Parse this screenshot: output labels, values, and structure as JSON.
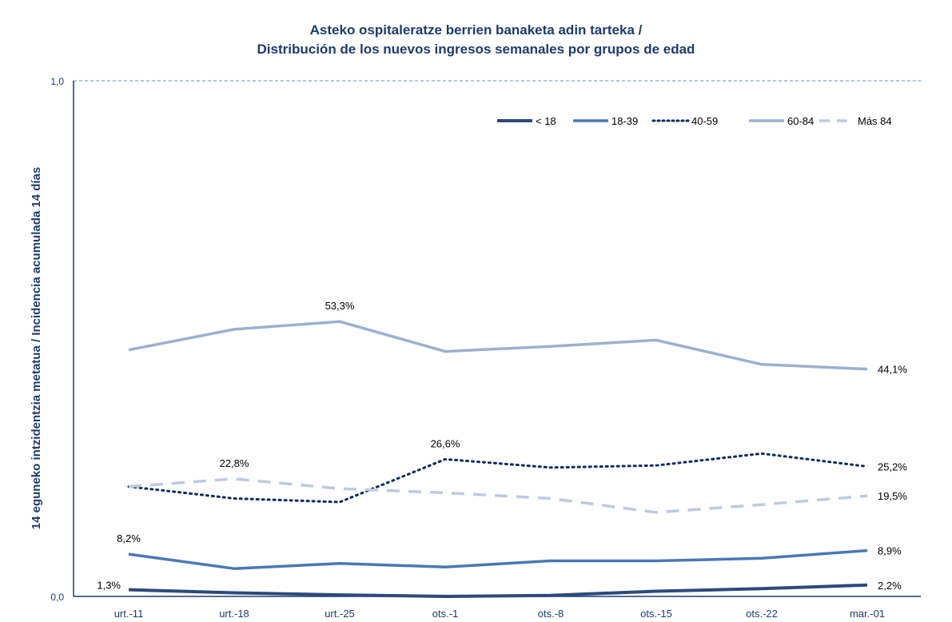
{
  "chart_data": {
    "type": "line",
    "title": "Asteko ospitaleratze berrien banaketa adin tarteka /",
    "subtitle": "Distribución de los nuevos ingresos semanales por grupos de edad",
    "ylabel": "14 eguneko intzidentzia metatua / Incidencia acumulada 14 días",
    "xlabel": "",
    "ylim": [
      0,
      1
    ],
    "y_ticks": [
      "0,0",
      "1,0"
    ],
    "legend_position": "top-right",
    "categories": [
      "urt.-11",
      "urt.-18",
      "urt.-25",
      "ots.-1",
      "ots.-8",
      "ots.-15",
      "ots.-22",
      "mar.-01"
    ],
    "series": [
      {
        "name": "< 18",
        "values": [
          0.013,
          0.007,
          0.003,
          0.0,
          0.002,
          0.01,
          0.015,
          0.022
        ],
        "color": "#2b4a7c",
        "dash": "solid",
        "width": 4,
        "labels": [
          {
            "index": 0,
            "text": "1,3%"
          },
          {
            "index": 7,
            "text": "2,2%"
          }
        ]
      },
      {
        "name": "18-39",
        "values": [
          0.082,
          0.054,
          0.064,
          0.057,
          0.069,
          0.069,
          0.074,
          0.089
        ],
        "color": "#4a78b4",
        "dash": "solid",
        "width": 3.5,
        "labels": [
          {
            "index": 0,
            "text": "8,2%"
          },
          {
            "index": 7,
            "text": "8,9%"
          }
        ]
      },
      {
        "name": "40-59",
        "values": [
          0.213,
          0.19,
          0.183,
          0.266,
          0.25,
          0.254,
          0.277,
          0.252
        ],
        "color": "#0d2a5e",
        "dash": "dotted",
        "width": 3,
        "labels": [
          {
            "index": 3,
            "text": "26,6%"
          },
          {
            "index": 7,
            "text": "25,2%"
          }
        ]
      },
      {
        "name": "60-84",
        "values": [
          0.478,
          0.518,
          0.533,
          0.475,
          0.485,
          0.497,
          0.45,
          0.441
        ],
        "color": "#9cb0d0",
        "dash": "solid",
        "width": 3.5,
        "labels": [
          {
            "index": 2,
            "text": "53,3%"
          },
          {
            "index": 7,
            "text": "44,1%"
          }
        ]
      },
      {
        "name": "Más 84",
        "values": [
          0.213,
          0.228,
          0.209,
          0.201,
          0.19,
          0.163,
          0.178,
          0.195
        ],
        "color": "#bfc9de",
        "dash": "dashed",
        "width": 3.5,
        "labels": [
          {
            "index": 1,
            "text": "22,8%"
          },
          {
            "index": 7,
            "text": "19,5%"
          }
        ]
      }
    ]
  }
}
